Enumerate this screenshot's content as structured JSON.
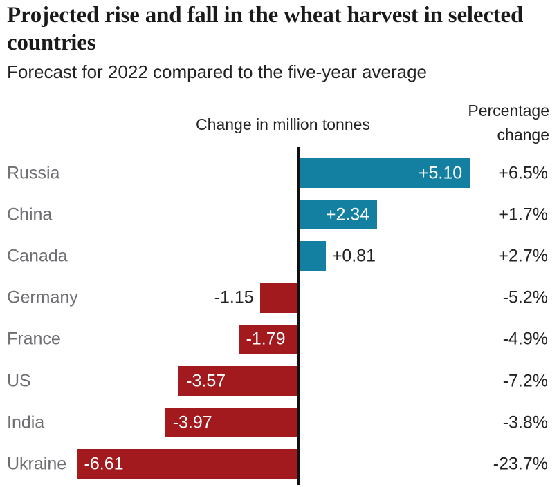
{
  "header": {
    "title": "Projected rise and fall in the wheat harvest in selected countries",
    "subtitle": "Forecast for 2022 compared to the five-year average"
  },
  "chart_data": {
    "type": "bar",
    "orientation": "horizontal",
    "title": "Projected rise and fall in the wheat harvest in selected countries",
    "subtitle": "Forecast for 2022 compared to the five-year average",
    "left_column_header": "Change in million tonnes",
    "right_column_header": "Percentage change",
    "categories": [
      "Russia",
      "China",
      "Canada",
      "Germany",
      "France",
      "US",
      "India",
      "Ukraine"
    ],
    "series": [
      {
        "name": "Change in million tonnes",
        "values": [
          5.1,
          2.34,
          0.81,
          -1.15,
          -1.79,
          -3.57,
          -3.97,
          -6.61
        ]
      },
      {
        "name": "Percentage change",
        "values": [
          6.5,
          1.7,
          2.7,
          -5.2,
          -4.9,
          -7.2,
          -3.8,
          -23.7
        ]
      }
    ],
    "bar_labels": [
      "+5.10",
      "+2.34",
      "+0.81",
      "-1.15",
      "-1.79",
      "-3.57",
      "-3.97",
      "-6.61"
    ],
    "pct_labels": [
      "+6.5%",
      "+1.7%",
      "+2.7%",
      "-5.2%",
      "-4.9%",
      "-7.2%",
      "-3.8%",
      "-23.7%"
    ],
    "xlim": [
      -6.8,
      5.6
    ],
    "grid": "off",
    "legend": "none",
    "colors": {
      "positive_bar": "#1380A1",
      "negative_bar": "#A2191E",
      "axis": "#111111",
      "category_label": "#6E6E73",
      "value_label_inside": "#FFFFFF",
      "value_label_outside": "#222222",
      "percent_label": "#222222"
    }
  }
}
